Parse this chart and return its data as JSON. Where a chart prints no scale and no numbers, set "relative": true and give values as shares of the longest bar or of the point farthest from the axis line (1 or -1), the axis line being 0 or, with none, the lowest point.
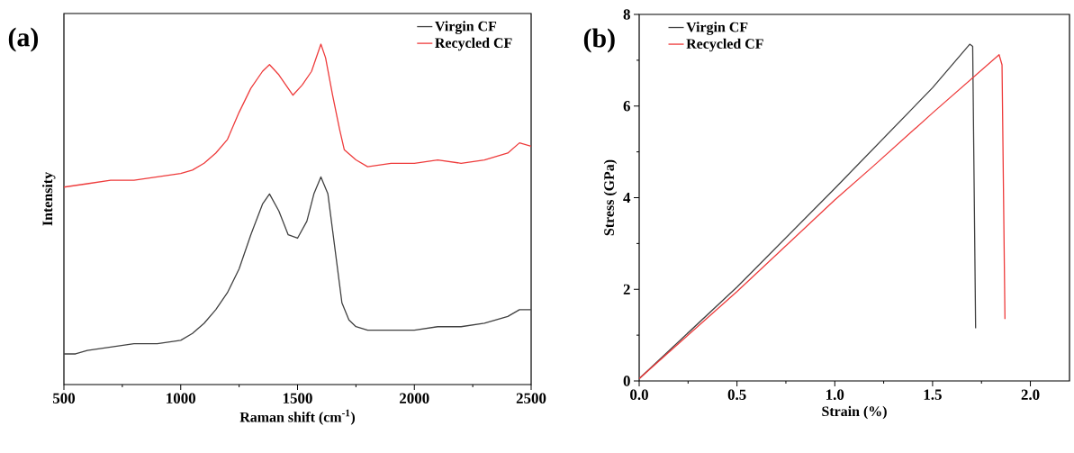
{
  "chart_data": [
    {
      "type": "line",
      "xlabel": "Raman shift (cm$^{-1}$)",
      "ylabel": "Intensity",
      "annotations": [
        "(a)"
      ],
      "relative": true,
      "tick_labels": "x",
      "legend": "top right",
      "xlim": [
        500,
        2500
      ],
      "xticks": [
        500,
        1000,
        1500,
        2000,
        2500
      ],
      "series": [
        {
          "name": "Virgin CF",
          "color": "#404040",
          "x": [
            500,
            550,
            600,
            700,
            800,
            900,
            1000,
            1050,
            1100,
            1150,
            1200,
            1250,
            1300,
            1350,
            1380,
            1420,
            1460,
            1500,
            1540,
            1570,
            1600,
            1630,
            1660,
            1690,
            1720,
            1750,
            1800,
            1900,
            2000,
            2100,
            2200,
            2300,
            2400,
            2450,
            2500
          ],
          "values": [
            0.09,
            0.09,
            0.1,
            0.11,
            0.12,
            0.12,
            0.13,
            0.15,
            0.18,
            0.22,
            0.27,
            0.34,
            0.44,
            0.53,
            0.56,
            0.51,
            0.44,
            0.43,
            0.48,
            0.56,
            0.61,
            0.56,
            0.4,
            0.24,
            0.19,
            0.17,
            0.16,
            0.16,
            0.16,
            0.17,
            0.17,
            0.18,
            0.2,
            0.22,
            0.22
          ]
        },
        {
          "name": "Recycled CF",
          "color": "#ee3b3b",
          "x": [
            500,
            600,
            700,
            800,
            900,
            1000,
            1050,
            1100,
            1150,
            1200,
            1250,
            1300,
            1350,
            1380,
            1420,
            1460,
            1480,
            1520,
            1560,
            1600,
            1620,
            1650,
            1680,
            1700,
            1750,
            1800,
            1900,
            2000,
            2100,
            2200,
            2300,
            2400,
            2450,
            2500
          ],
          "values": [
            0.58,
            0.59,
            0.6,
            0.6,
            0.61,
            0.62,
            0.63,
            0.65,
            0.68,
            0.72,
            0.8,
            0.87,
            0.92,
            0.94,
            0.91,
            0.87,
            0.85,
            0.88,
            0.92,
            1.0,
            0.96,
            0.85,
            0.75,
            0.69,
            0.66,
            0.64,
            0.65,
            0.65,
            0.66,
            0.65,
            0.66,
            0.68,
            0.71,
            0.7
          ]
        }
      ]
    },
    {
      "type": "line",
      "xlabel": "Strain (%)",
      "ylabel": "Stress (GPa)",
      "annotations": [
        "(b)"
      ],
      "legend": "top left",
      "xlim": [
        0,
        2.2
      ],
      "xticks": [
        {
          "value": 0,
          "label": "0.0"
        },
        0.5,
        {
          "value": 1,
          "label": "1.0"
        },
        1.5,
        {
          "value": 2,
          "label": "2.0"
        }
      ],
      "ylim": [
        0,
        8
      ],
      "yticks": [
        0,
        2,
        4,
        6,
        8
      ],
      "series": [
        {
          "name": "Virgin CF",
          "color": "#404040",
          "x": [
            0,
            0.5,
            1.0,
            1.5,
            1.69,
            1.705,
            1.72
          ],
          "values": [
            0.05,
            2.05,
            4.2,
            6.4,
            7.35,
            7.3,
            1.15
          ]
        },
        {
          "name": "Recycled CF",
          "color": "#ee3b3b",
          "x": [
            0,
            0.5,
            1.0,
            1.2,
            1.5,
            1.84,
            1.855,
            1.87
          ],
          "values": [
            0.05,
            1.95,
            3.95,
            4.7,
            5.85,
            7.12,
            6.9,
            1.35
          ]
        }
      ]
    }
  ]
}
